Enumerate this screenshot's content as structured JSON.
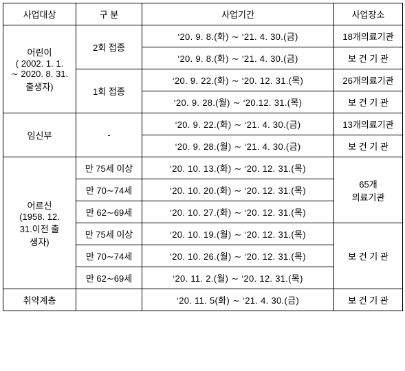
{
  "headers": {
    "target": "사업대상",
    "division": "구    분",
    "period": "사업기간",
    "location": "사업장소"
  },
  "groups": [
    {
      "target_lines": [
        "어린이",
        "( 2002. 1. 1.",
        "∼ 2020. 8. 31.",
        "출생자)"
      ],
      "rowspan": 4,
      "subgroups": [
        {
          "division": "2회 접종",
          "rows": [
            {
              "period": "‘20.  9.  8.(화)   ∼  ‘21.  4.  30.(금)",
              "location": "18개의료기관"
            },
            {
              "period": "‘20.  9.  8.(화)   ∼  ‘21.  4.  30.(금)",
              "location": "보  건  기  관"
            }
          ]
        },
        {
          "division": "1회 접종",
          "rows": [
            {
              "period": "‘20.  9.  22.(화)  ∼  ‘20.  12.  31.(목)",
              "location": "26개의료기관"
            },
            {
              "period": "‘20.  9.  28.(월)  ∼  ‘20.12.  31.(목)",
              "location": "보  건  기  관"
            }
          ]
        }
      ]
    },
    {
      "target_lines": [
        "임신부"
      ],
      "rowspan": 2,
      "subgroups": [
        {
          "division": "-",
          "rows": [
            {
              "period": "‘20.  9.  22.(화)   ∼  ‘21.  4.  30.(금)",
              "location": "13개의료기관"
            },
            {
              "period": "‘20.  9.  28.(월)   ∼  ‘21.  4.  30.(금)",
              "location": "보  건  기  관"
            }
          ]
        }
      ]
    },
    {
      "target_lines": [
        "어르신",
        "(1958.       12.",
        "31.이전  출",
        "생자)"
      ],
      "rowspan": 6,
      "subgroups": [
        {
          "division": "만 75세 이상",
          "rows": [
            {
              "period": "‘20.  10.  13.(화)  ∼  ‘20.  12.  31.(목)"
            }
          ]
        },
        {
          "division": "만 70∼74세",
          "rows": [
            {
              "period": "‘20.  10.  20.(화)  ∼  ‘20.  12.  31.(목)"
            }
          ]
        },
        {
          "division": "만 62∼69세",
          "rows": [
            {
              "period": "‘20.  10.  27.(화)  ∼  ‘20.  12.  31.(목)"
            }
          ]
        },
        {
          "division": "만 75세 이상",
          "rows": [
            {
              "period": "‘20.  10.  19.(월)  ∼  ‘20.  12.  31.(목)"
            }
          ]
        },
        {
          "division": "만 70∼74세",
          "rows": [
            {
              "period": "‘20.  10.  26.(월)  ∼  ‘20.  12.  31.(목)"
            }
          ]
        },
        {
          "division": "만 62∼69세",
          "rows": [
            {
              "period": "‘20.  11.  2.(월)  ∼  ‘20.  12.  31.(목)"
            }
          ]
        }
      ],
      "location_merge1_lines": [
        "65개",
        "의료기관"
      ],
      "location_merge2": "보  건  기  관"
    },
    {
      "target_lines": [
        "취약계층"
      ],
      "rowspan": 1,
      "subgroups": [
        {
          "division": "",
          "rows": [
            {
              "period": "‘20.  11.  5(화)   ∼  ‘21.  4.  30.(금)",
              "location": "보  건  기  관"
            }
          ]
        }
      ]
    }
  ]
}
